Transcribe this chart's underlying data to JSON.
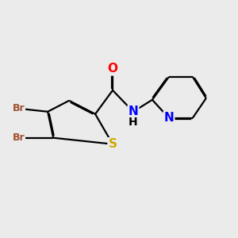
{
  "background_color": "#ebebeb",
  "bond_color": "#000000",
  "bond_width": 1.6,
  "atom_labels": {
    "O": {
      "color": "#ff0000",
      "fontsize": 11
    },
    "N": {
      "color": "#0000ff",
      "fontsize": 11
    },
    "S": {
      "color": "#ccaa00",
      "fontsize": 11
    },
    "Br": {
      "color": "#a0522d",
      "fontsize": 9
    }
  },
  "figsize": [
    3.0,
    3.0
  ],
  "dpi": 100
}
